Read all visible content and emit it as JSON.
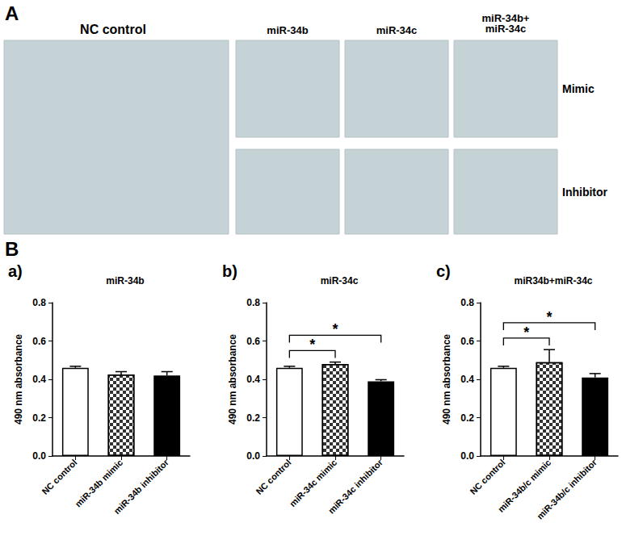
{
  "figure": {
    "panel_a": {
      "label": "A",
      "control": "NC control",
      "columns": [
        "miR-34b",
        "miR-34c",
        "miR-34b+\nmiR-34c"
      ],
      "rows": [
        "Mimic",
        "Inhibitor"
      ]
    },
    "panel_b": {
      "label": "B"
    }
  },
  "chart_data": [
    {
      "type": "bar",
      "label": "a)",
      "title": "miR-34b",
      "y_label": "490 nm absorbance",
      "categories": [
        "NC control",
        "miR-34b mimic",
        "miR-34b inhibitor"
      ],
      "values": [
        0.46,
        0.425,
        0.42
      ],
      "errors": [
        0.008,
        0.015,
        0.02
      ],
      "colors": [
        "#ffffff",
        "#333333",
        "#000000"
      ],
      "ylim": [
        0,
        0.8
      ],
      "yticks": [
        {
          "value": 0,
          "label": "0.0"
        },
        0.2,
        0.4,
        0.6,
        0.8
      ],
      "grid": false,
      "significance": []
    },
    {
      "type": "bar",
      "label": "b)",
      "title": "miR-34c",
      "y_label": "490 nm absorbance",
      "categories": [
        "NC control",
        "miR-34c mimic",
        "miR-34c inhibitor"
      ],
      "values": [
        0.46,
        0.48,
        0.39
      ],
      "errors": [
        0.008,
        0.01,
        0.008
      ],
      "colors": [
        "#ffffff",
        "#333333",
        "#000000"
      ],
      "ylim": [
        0,
        0.8
      ],
      "yticks": [
        {
          "value": 0,
          "label": "0.0"
        },
        0.2,
        0.4,
        0.6,
        0.8
      ],
      "grid": false,
      "significance": [
        {
          "from": 0,
          "to": 1,
          "label": "*"
        },
        {
          "from": 0,
          "to": 2,
          "label": "*"
        }
      ]
    },
    {
      "type": "bar",
      "label": "c)",
      "title": "miR34b+miR-34c",
      "y_label": "490 nm absorbance",
      "categories": [
        "NC control",
        "miR-34b/c mimic",
        "miR-34b/c inhibitor"
      ],
      "values": [
        0.46,
        0.49,
        0.41
      ],
      "errors": [
        0.008,
        0.065,
        0.02
      ],
      "colors": [
        "#ffffff",
        "#333333",
        "#000000"
      ],
      "ylim": [
        0,
        0.8
      ],
      "yticks": [
        {
          "value": 0,
          "label": "0.0"
        },
        0.2,
        0.4,
        0.6,
        0.8
      ],
      "grid": false,
      "significance": [
        {
          "from": 0,
          "to": 1,
          "label": "*"
        },
        {
          "from": 0,
          "to": 2,
          "label": "*"
        }
      ]
    }
  ]
}
